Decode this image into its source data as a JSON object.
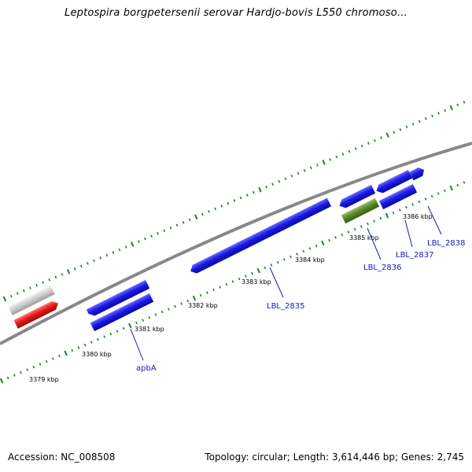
{
  "title": "Leptospira borgpetersenii serovar Hardjo-bovis L550 chromoso...",
  "footer": {
    "accession": "Accession: NC_008508",
    "stats": "Topology: circular; Length: 3,614,446 bp; Genes: 2,745"
  },
  "colors": {
    "gene_blue": "#1a1ae6",
    "gene_red": "#e61a1a",
    "gene_green": "#5a8a2a",
    "gene_gray": "#c8c8c8",
    "backbone": "#888888",
    "tick_green": "#2a7a2a",
    "label_blue": "#1a1ab8"
  },
  "kbp_labels": [
    "3379 kbp",
    "3380 kbp",
    "3381 kbp",
    "3382 kbp",
    "3383 kbp",
    "3384 kbp",
    "3385 kbp",
    "3386 kbp"
  ],
  "gene_labels": [
    "apbA",
    "LBL_2835",
    "LBL_2836",
    "LBL_2837",
    "LBL_2838"
  ]
}
